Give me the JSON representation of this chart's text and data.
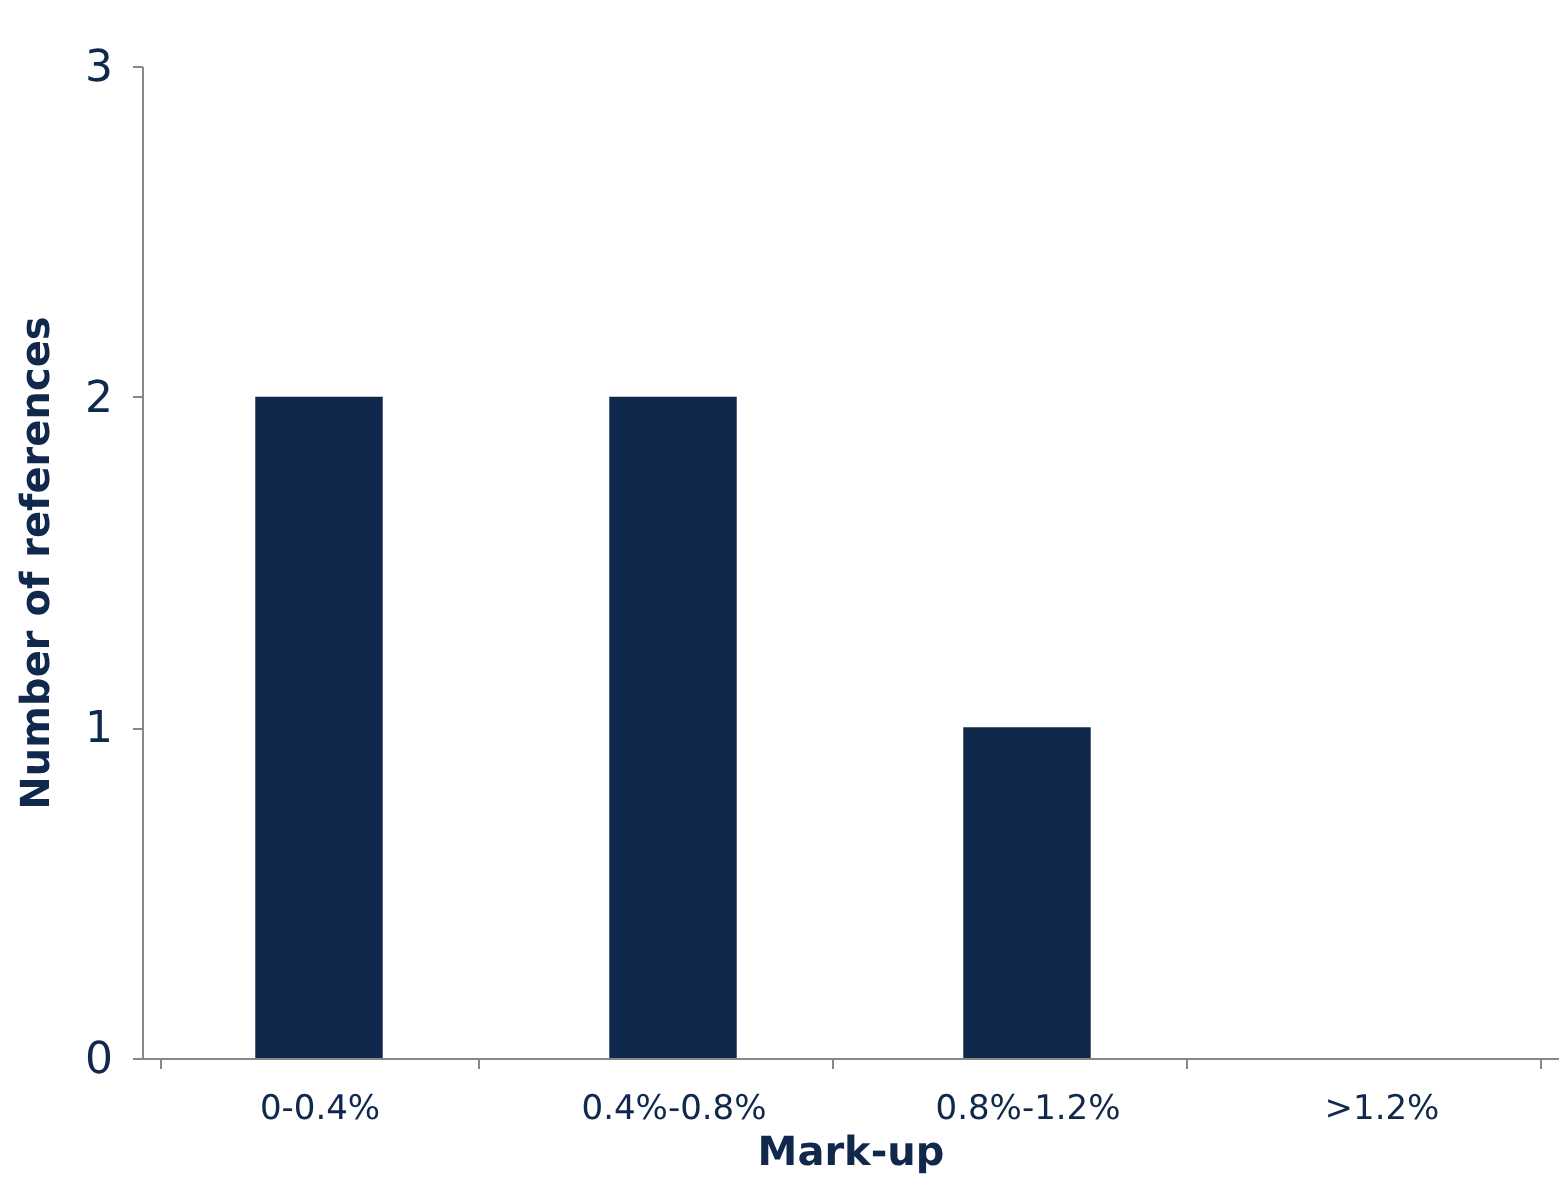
{
  "chart_data": {
    "type": "bar",
    "xlabel": "Mark-up",
    "ylabel": "Number of references",
    "categories": [
      "0-0.4%",
      "0.4%-0.8%",
      "0.8%-1.2%",
      ">1.2%"
    ],
    "values": [
      2,
      2,
      1,
      0
    ],
    "color": "#0f284b",
    "ylim": [
      0,
      3
    ],
    "yticks": [
      0,
      1,
      2,
      3
    ],
    "grid": false
  }
}
